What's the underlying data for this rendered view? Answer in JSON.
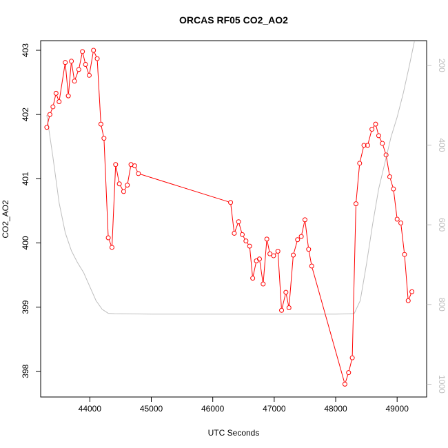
{
  "chart_data": {
    "type": "line",
    "title": "ORCAS RF05 CO2_AO2",
    "xlabel": "UTC Seconds",
    "ylabel": "CO2_AO2",
    "xlim": [
      43200,
      49480
    ],
    "ylim": [
      397.6,
      403.15
    ],
    "x_ticks": [
      "44000",
      "45000",
      "46000",
      "47000",
      "48000",
      "49000"
    ],
    "y_ticks": [
      "398",
      "399",
      "400",
      "401",
      "402",
      "403"
    ],
    "right_axis": {
      "ticks": [
        "200",
        "400",
        "600",
        "800",
        "1000"
      ],
      "lim": [
        138,
        1032
      ],
      "reversed": true
    },
    "colors": {
      "series": "#ff0000",
      "secondary": "#bebebe"
    },
    "series": [
      {
        "values": [
          [
            43300,
            401.8
          ],
          [
            43350,
            402.0
          ],
          [
            43400,
            402.12
          ],
          [
            43450,
            402.33
          ],
          [
            43500,
            402.2
          ],
          [
            43600,
            402.81
          ],
          [
            43650,
            402.29
          ],
          [
            43700,
            402.83
          ],
          [
            43750,
            402.52
          ],
          [
            43820,
            402.7
          ],
          [
            43880,
            402.98
          ],
          [
            43930,
            402.78
          ],
          [
            43990,
            402.61
          ],
          [
            44060,
            403.0
          ],
          [
            44120,
            402.87
          ],
          [
            44180,
            401.85
          ],
          [
            44230,
            401.63
          ],
          [
            44300,
            400.08
          ],
          [
            44360,
            399.93
          ],
          [
            44420,
            401.22
          ],
          [
            44480,
            400.92
          ],
          [
            44550,
            400.8
          ],
          [
            44610,
            400.9
          ],
          [
            44670,
            401.22
          ],
          [
            44730,
            401.2
          ],
          [
            44790,
            401.08
          ],
          [
            46290,
            400.63
          ],
          [
            46350,
            400.15
          ],
          [
            46420,
            400.33
          ],
          [
            46480,
            400.13
          ],
          [
            46540,
            400.03
          ],
          [
            46600,
            399.95
          ],
          [
            46650,
            399.45
          ],
          [
            46710,
            399.72
          ],
          [
            46760,
            399.75
          ],
          [
            46820,
            399.36
          ],
          [
            46880,
            400.06
          ],
          [
            46930,
            399.83
          ],
          [
            46990,
            399.8
          ],
          [
            47060,
            399.87
          ],
          [
            47120,
            398.95
          ],
          [
            47190,
            399.23
          ],
          [
            47240,
            398.99
          ],
          [
            47310,
            399.81
          ],
          [
            47380,
            400.05
          ],
          [
            47440,
            400.1
          ],
          [
            47500,
            400.36
          ],
          [
            47560,
            399.9
          ],
          [
            47610,
            399.64
          ],
          [
            48150,
            397.8
          ],
          [
            48210,
            397.98
          ],
          [
            48270,
            398.21
          ],
          [
            48330,
            400.61
          ],
          [
            48390,
            401.24
          ],
          [
            48460,
            401.52
          ],
          [
            48520,
            401.52
          ],
          [
            48590,
            401.77
          ],
          [
            48650,
            401.85
          ],
          [
            48700,
            401.67
          ],
          [
            48760,
            401.55
          ],
          [
            48820,
            401.37
          ],
          [
            48880,
            401.03
          ],
          [
            48940,
            400.84
          ],
          [
            49000,
            400.37
          ],
          [
            49060,
            400.31
          ],
          [
            49120,
            399.82
          ],
          [
            49180,
            399.1
          ],
          [
            49240,
            399.24
          ]
        ]
      },
      {
        "axis": "right",
        "values": [
          [
            43300,
            325
          ],
          [
            43400,
            430
          ],
          [
            43500,
            545
          ],
          [
            43600,
            620
          ],
          [
            43700,
            665
          ],
          [
            43800,
            695
          ],
          [
            43900,
            720
          ],
          [
            44000,
            755
          ],
          [
            44100,
            790
          ],
          [
            44200,
            812
          ],
          [
            44300,
            822
          ],
          [
            44400,
            823
          ],
          [
            45000,
            824
          ],
          [
            46000,
            824
          ],
          [
            47000,
            824
          ],
          [
            48000,
            824
          ],
          [
            48300,
            823
          ],
          [
            48400,
            790
          ],
          [
            48500,
            700
          ],
          [
            48600,
            600
          ],
          [
            48700,
            510
          ],
          [
            48800,
            445
          ],
          [
            48900,
            380
          ],
          [
            49000,
            330
          ],
          [
            49100,
            270
          ],
          [
            49200,
            200
          ],
          [
            49280,
            140
          ]
        ]
      }
    ]
  }
}
